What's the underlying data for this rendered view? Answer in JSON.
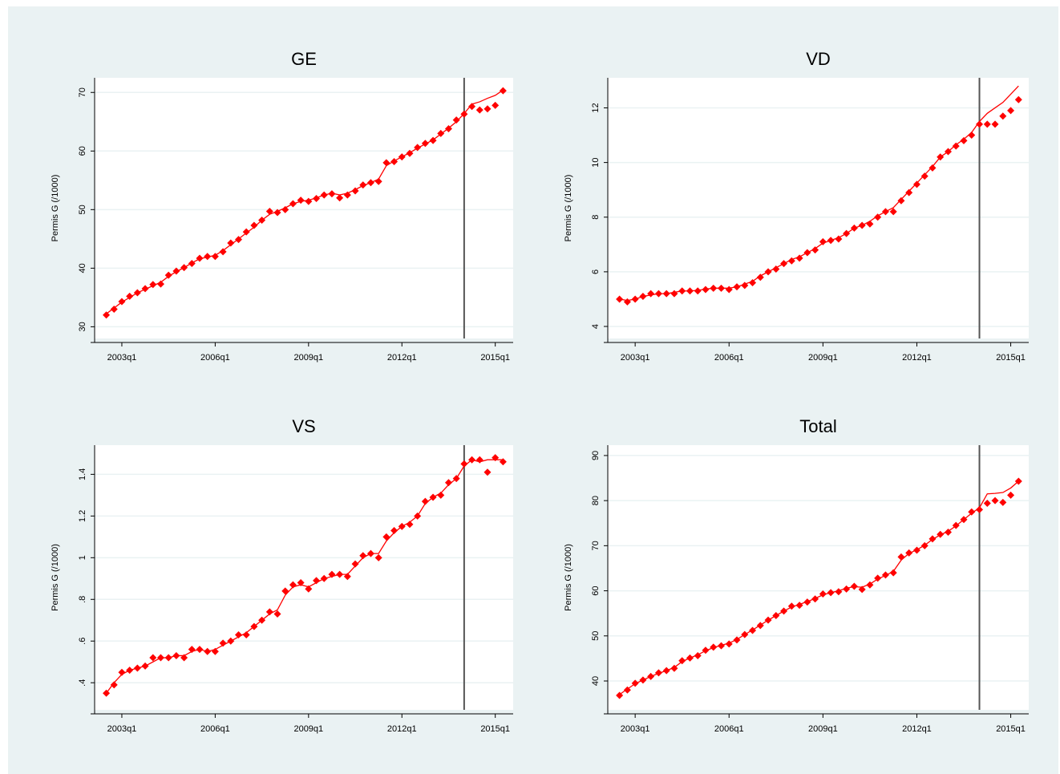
{
  "chart_data": [
    {
      "type": "line",
      "title": "GE",
      "y_label": "Permis G (/1000)",
      "x": [
        170,
        171,
        172,
        173,
        174,
        175,
        176,
        177,
        178,
        179,
        180,
        181,
        182,
        183,
        184,
        185,
        186,
        187,
        188,
        189,
        190,
        191,
        192,
        193,
        194,
        195,
        196,
        197,
        198,
        199,
        200,
        201,
        202,
        203,
        204,
        205,
        206,
        207,
        208,
        209,
        210,
        211,
        212,
        213,
        214,
        215,
        216,
        217,
        218,
        219,
        220,
        221
      ],
      "xlim": [
        168.5,
        222.3
      ],
      "xticks": [
        {
          "value": 172,
          "label": "2003q1"
        },
        {
          "value": 184,
          "label": "2006q1"
        },
        {
          "value": 196,
          "label": "2009q1"
        },
        {
          "value": 208,
          "label": "2012q1"
        },
        {
          "value": 220,
          "label": "2015q1"
        }
      ],
      "ylim": [
        28,
        72.5
      ],
      "yticks": [
        30,
        40,
        50,
        60,
        70
      ],
      "grid": true,
      "vline": 216,
      "series": [
        {
          "color": "#ff0000",
          "style": "markers",
          "values": [
            32,
            33,
            34.3,
            35.2,
            35.8,
            36.5,
            37.2,
            37.3,
            38.8,
            39.5,
            40.1,
            40.8,
            41.7,
            42,
            42,
            42.8,
            44.3,
            44.9,
            46.2,
            47.3,
            48.2,
            49.7,
            49.5,
            50,
            51,
            51.6,
            51.4,
            51.9,
            52.5,
            52.7,
            52,
            52.5,
            53.2,
            54.2,
            54.6,
            54.8,
            58,
            58.2,
            59,
            59.6,
            60.6,
            61.3,
            61.8,
            63,
            63.8,
            65.3,
            66.3,
            67.6,
            67,
            67.2,
            67.8,
            70.3
          ]
        },
        {
          "color": "#ff0000",
          "style": "line",
          "values": [
            32.2,
            33.2,
            34.2,
            35,
            35.8,
            36.4,
            37,
            37.6,
            38.6,
            39.4,
            40.1,
            40.9,
            41.6,
            41.9,
            42.2,
            43,
            44,
            45,
            46,
            47,
            48.2,
            49.2,
            49.7,
            50.3,
            51,
            51.4,
            51.6,
            52,
            52.5,
            52.8,
            52.5,
            52.8,
            53.4,
            54.1,
            54.6,
            55.2,
            57.5,
            58.3,
            59,
            59.7,
            60.5,
            61.2,
            61.9,
            62.9,
            63.9,
            65,
            66.4,
            68,
            68.4,
            69,
            69.5,
            70.4
          ]
        }
      ]
    },
    {
      "type": "line",
      "title": "VD",
      "y_label": "Permis G (/1000)",
      "x": [
        170,
        171,
        172,
        173,
        174,
        175,
        176,
        177,
        178,
        179,
        180,
        181,
        182,
        183,
        184,
        185,
        186,
        187,
        188,
        189,
        190,
        191,
        192,
        193,
        194,
        195,
        196,
        197,
        198,
        199,
        200,
        201,
        202,
        203,
        204,
        205,
        206,
        207,
        208,
        209,
        210,
        211,
        212,
        213,
        214,
        215,
        216,
        217,
        218,
        219,
        220,
        221
      ],
      "xlim": [
        168.5,
        222.3
      ],
      "xticks": [
        {
          "value": 172,
          "label": "2003q1"
        },
        {
          "value": 184,
          "label": "2006q1"
        },
        {
          "value": 196,
          "label": "2009q1"
        },
        {
          "value": 208,
          "label": "2012q1"
        },
        {
          "value": 220,
          "label": "2015q1"
        }
      ],
      "ylim": [
        3.56,
        13.1
      ],
      "yticks": [
        4,
        6,
        8,
        10,
        12
      ],
      "grid": true,
      "vline": 216,
      "series": [
        {
          "color": "#ff0000",
          "style": "markers",
          "values": [
            5,
            4.9,
            5,
            5.1,
            5.2,
            5.2,
            5.2,
            5.2,
            5.3,
            5.3,
            5.3,
            5.35,
            5.4,
            5.4,
            5.35,
            5.45,
            5.5,
            5.6,
            5.8,
            6,
            6.1,
            6.3,
            6.4,
            6.5,
            6.7,
            6.8,
            7.1,
            7.15,
            7.2,
            7.4,
            7.6,
            7.7,
            7.75,
            8,
            8.2,
            8.2,
            8.6,
            8.9,
            9.2,
            9.5,
            9.8,
            10.2,
            10.4,
            10.6,
            10.8,
            11,
            11.4,
            11.4,
            11.4,
            11.7,
            11.9,
            12.3
          ]
        },
        {
          "color": "#ff0000",
          "style": "line",
          "values": [
            5,
            4.95,
            5,
            5.1,
            5.15,
            5.2,
            5.2,
            5.25,
            5.3,
            5.3,
            5.32,
            5.37,
            5.4,
            5.4,
            5.4,
            5.45,
            5.55,
            5.65,
            5.85,
            6,
            6.15,
            6.3,
            6.45,
            6.55,
            6.7,
            6.85,
            7.05,
            7.15,
            7.25,
            7.4,
            7.6,
            7.7,
            7.85,
            8.05,
            8.2,
            8.35,
            8.65,
            8.95,
            9.25,
            9.55,
            9.85,
            10.2,
            10.4,
            10.65,
            10.85,
            11.1,
            11.5,
            11.8,
            12,
            12.2,
            12.5,
            12.8
          ]
        }
      ]
    },
    {
      "type": "line",
      "title": "VS",
      "y_label": "Permis G (/1000)",
      "x": [
        170,
        171,
        172,
        173,
        174,
        175,
        176,
        177,
        178,
        179,
        180,
        181,
        182,
        183,
        184,
        185,
        186,
        187,
        188,
        189,
        190,
        191,
        192,
        193,
        194,
        195,
        196,
        197,
        198,
        199,
        200,
        201,
        202,
        203,
        204,
        205,
        206,
        207,
        208,
        209,
        210,
        211,
        212,
        213,
        214,
        215,
        216,
        217,
        218,
        219,
        220,
        221
      ],
      "xlim": [
        168.5,
        222.3
      ],
      "xticks": [
        {
          "value": 172,
          "label": "2003q1"
        },
        {
          "value": 184,
          "label": "2006q1"
        },
        {
          "value": 196,
          "label": "2009q1"
        },
        {
          "value": 208,
          "label": "2012q1"
        },
        {
          "value": 220,
          "label": "2015q1"
        }
      ],
      "ylim": [
        0.27,
        1.54
      ],
      "yticks": [
        {
          "value": 0.4,
          "label": ".4"
        },
        {
          "value": 0.6,
          "label": ".6"
        },
        {
          "value": 0.8,
          "label": ".8"
        },
        1,
        1.2,
        1.4
      ],
      "grid": true,
      "vline": 216,
      "series": [
        {
          "color": "#ff0000",
          "style": "markers",
          "values": [
            0.35,
            0.39,
            0.45,
            0.46,
            0.47,
            0.48,
            0.52,
            0.52,
            0.52,
            0.53,
            0.52,
            0.56,
            0.56,
            0.55,
            0.55,
            0.59,
            0.6,
            0.63,
            0.63,
            0.67,
            0.7,
            0.74,
            0.73,
            0.84,
            0.87,
            0.88,
            0.85,
            0.89,
            0.9,
            0.92,
            0.92,
            0.91,
            0.97,
            1.01,
            1.02,
            1,
            1.1,
            1.13,
            1.15,
            1.16,
            1.2,
            1.27,
            1.29,
            1.3,
            1.36,
            1.38,
            1.45,
            1.47,
            1.47,
            1.41,
            1.48,
            1.46
          ]
        },
        {
          "color": "#ff0000",
          "style": "line",
          "values": [
            0.35,
            0.4,
            0.44,
            0.46,
            0.47,
            0.48,
            0.5,
            0.52,
            0.52,
            0.53,
            0.53,
            0.55,
            0.56,
            0.55,
            0.56,
            0.58,
            0.6,
            0.62,
            0.64,
            0.67,
            0.7,
            0.73,
            0.75,
            0.82,
            0.86,
            0.87,
            0.86,
            0.88,
            0.9,
            0.91,
            0.92,
            0.92,
            0.96,
            1,
            1.02,
            1.02,
            1.08,
            1.12,
            1.15,
            1.17,
            1.2,
            1.26,
            1.29,
            1.31,
            1.35,
            1.38,
            1.44,
            1.47,
            1.46,
            1.47,
            1.47,
            1.47
          ]
        }
      ]
    },
    {
      "type": "line",
      "title": "Total",
      "y_label": "Permis G (/1000)",
      "x": [
        170,
        171,
        172,
        173,
        174,
        175,
        176,
        177,
        178,
        179,
        180,
        181,
        182,
        183,
        184,
        185,
        186,
        187,
        188,
        189,
        190,
        191,
        192,
        193,
        194,
        195,
        196,
        197,
        198,
        199,
        200,
        201,
        202,
        203,
        204,
        205,
        206,
        207,
        208,
        209,
        210,
        211,
        212,
        213,
        214,
        215,
        216,
        217,
        218,
        219,
        220,
        221
      ],
      "xlim": [
        168.5,
        222.3
      ],
      "xticks": [
        {
          "value": 172,
          "label": "2003q1"
        },
        {
          "value": 184,
          "label": "2006q1"
        },
        {
          "value": 196,
          "label": "2009q1"
        },
        {
          "value": 208,
          "label": "2012q1"
        },
        {
          "value": 220,
          "label": "2015q1"
        }
      ],
      "ylim": [
        33.6,
        92.3
      ],
      "yticks": [
        40,
        50,
        60,
        70,
        80,
        90
      ],
      "grid": true,
      "vline": 216,
      "series": [
        {
          "color": "#ff0000",
          "style": "markers",
          "values": [
            36.8,
            38,
            39.5,
            40.2,
            41,
            41.8,
            42.3,
            42.8,
            44.5,
            45.1,
            45.6,
            46.8,
            47.5,
            47.8,
            48.2,
            49.1,
            50.3,
            51.2,
            52.3,
            53.5,
            54.5,
            55.5,
            56.6,
            56.8,
            57.5,
            58.2,
            59.3,
            59.6,
            59.8,
            60.4,
            61,
            60.3,
            61.3,
            62.8,
            63.5,
            64,
            67.5,
            68.4,
            69,
            70,
            71.5,
            72.5,
            73,
            74.5,
            75.8,
            77.5,
            78,
            79.4,
            80,
            79.6,
            81.2,
            84.3
          ]
        },
        {
          "color": "#ff0000",
          "style": "line",
          "values": [
            37,
            38.2,
            39.4,
            40.2,
            41,
            41.7,
            42.3,
            43,
            44.3,
            45.1,
            45.8,
            46.7,
            47.4,
            47.9,
            48.4,
            49.2,
            50.3,
            51.3,
            52.4,
            53.5,
            54.5,
            55.5,
            56.4,
            57,
            57.6,
            58.3,
            59.1,
            59.6,
            60,
            60.6,
            60.9,
            60.8,
            61.5,
            62.6,
            63.4,
            64.3,
            66.8,
            68.3,
            69.1,
            70.1,
            71.4,
            72.4,
            73.2,
            74.4,
            75.8,
            77.2,
            78.4,
            81.5,
            81.6,
            81.8,
            82.8,
            84.3
          ]
        }
      ]
    }
  ]
}
